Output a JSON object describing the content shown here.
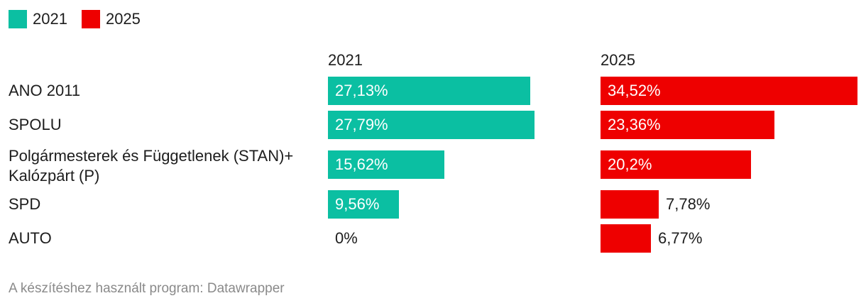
{
  "legend": [
    {
      "label": "2021",
      "color": "#0bbfa2"
    },
    {
      "label": "2025",
      "color": "#ee0000"
    }
  ],
  "footer": "A készítéshez használt program: Datawrapper",
  "chart_data": {
    "type": "bar",
    "orientation": "horizontal",
    "layout": "small-multiples",
    "categories": [
      "ANO 2011",
      "SPOLU",
      "Polgármesterek és Függetlenek (STAN)+ Kalózpárt (P)",
      "SPD",
      "AUTO"
    ],
    "series": [
      {
        "name": "2021",
        "color": "#0bbfa2",
        "values": [
          27.13,
          27.79,
          15.62,
          9.56,
          0
        ],
        "labels": [
          "27,13%",
          "27,79%",
          "15,62%",
          "9,56%",
          "0%"
        ]
      },
      {
        "name": "2025",
        "color": "#ee0000",
        "values": [
          34.52,
          23.36,
          20.2,
          7.78,
          6.77
        ],
        "labels": [
          "34,52%",
          "23,36%",
          "20,2%",
          "7,78%",
          "6,77%"
        ]
      }
    ],
    "xlim": [
      0,
      34.52
    ],
    "grid": false,
    "legend_position": "top-left"
  }
}
